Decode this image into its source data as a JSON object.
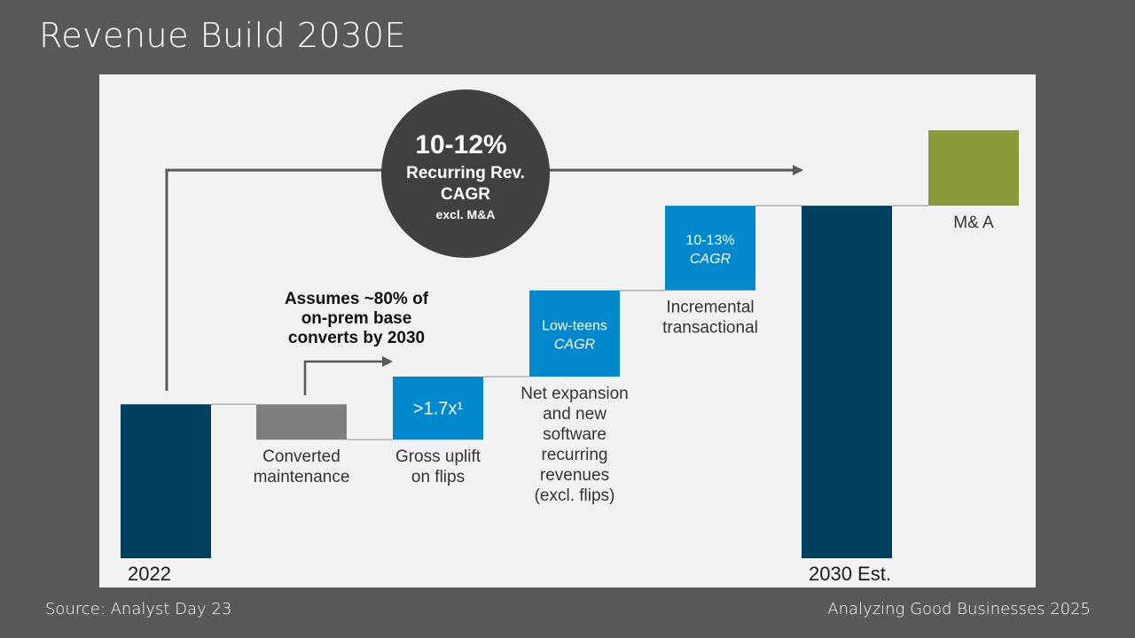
{
  "slide": {
    "title": "Revenue Build 2030E",
    "source": "Source: Analyst Day 23",
    "credit": "Analyzing Good Businesses 2025"
  },
  "colors": {
    "dark_bar": "#00405f",
    "gray_bar": "#7f7f7f",
    "blue_bar": "#0288cc",
    "green_bar": "#8a9a3a",
    "circle": "#404040",
    "arrow": "#595959",
    "connector": "#b0b0b0"
  },
  "chart_data": {
    "type": "bar",
    "subtype": "waterfall",
    "title": "",
    "y_axis": "none (relative heights, no scale shown)",
    "categories": [
      "2022",
      "Converted maintenance",
      "Gross uplift on flips",
      "Net expansion and new software recurring revenues (excl. flips)",
      "Incremental transactional",
      "2030 Est.",
      "M& A"
    ],
    "steps": [
      {
        "label_lines": [
          "2022"
        ],
        "kind": "total",
        "start": 0,
        "end": 100,
        "color": "dark_bar",
        "label_style": "bottom"
      },
      {
        "label_lines": [
          "Converted",
          "maintenance"
        ],
        "kind": "decrease",
        "start": 100,
        "end": 77,
        "color": "gray_bar",
        "label_style": "below"
      },
      {
        "label_lines": [
          "Gross uplift",
          "on flips"
        ],
        "kind": "increase",
        "start": 77,
        "end": 118,
        "color": "blue_bar",
        "inner": [
          ">1.7x¹"
        ],
        "label_style": "below"
      },
      {
        "label_lines": [
          "Net expansion",
          "and new",
          "software",
          "recurring",
          "revenues",
          "(excl. flips)"
        ],
        "kind": "increase",
        "start": 118,
        "end": 174,
        "color": "blue_bar",
        "inner": [
          "Low-teens",
          "CAGR"
        ],
        "label_style": "below"
      },
      {
        "label_lines": [
          "Incremental",
          "transactional"
        ],
        "kind": "increase",
        "start": 174,
        "end": 229,
        "color": "blue_bar",
        "inner": [
          "10-13%",
          "CAGR"
        ],
        "label_style": "below"
      },
      {
        "label_lines": [
          "2030 Est."
        ],
        "kind": "total",
        "start": 0,
        "end": 229,
        "color": "dark_bar",
        "label_style": "bottom"
      },
      {
        "label_lines": [
          "M& A"
        ],
        "kind": "increase",
        "start": 229,
        "end": 278,
        "color": "green_bar",
        "label_style": "below"
      }
    ],
    "annotations": {
      "circle": [
        "10-12%",
        "Recurring Rev.",
        "CAGR",
        "excl. M&A"
      ],
      "callout": [
        "Assumes ~80% of",
        "on-prem base",
        "converts by 2030"
      ]
    }
  }
}
